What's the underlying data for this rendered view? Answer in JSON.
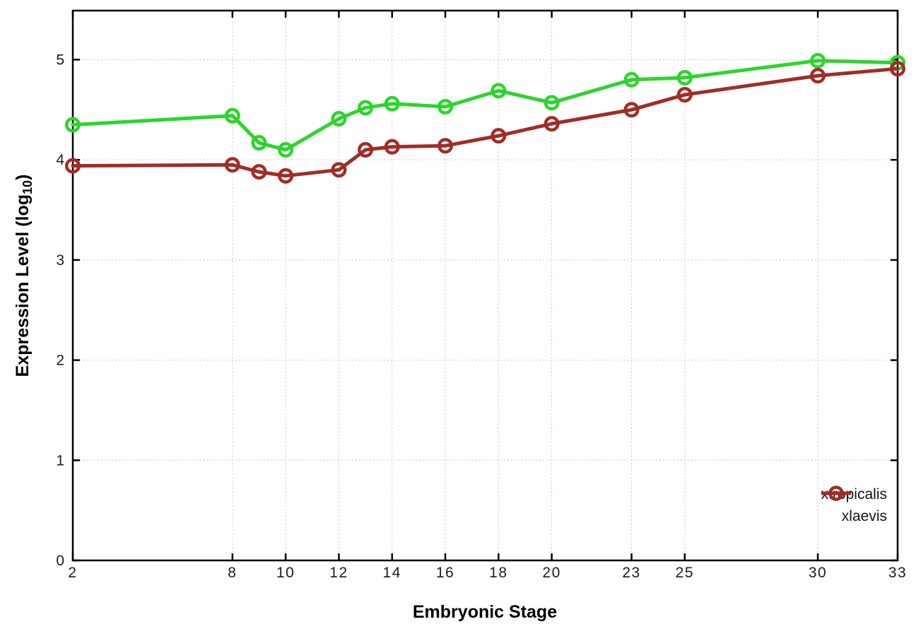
{
  "figure": {
    "xlabel": "Embryonic Stage",
    "ylabel_main": "Expression Level (log",
    "ylabel_sub": "10",
    "ylabel_end": ")"
  },
  "chart_data": {
    "type": "line",
    "x": [
      2,
      8,
      9,
      10,
      12,
      13,
      14,
      16,
      18,
      20,
      23,
      25,
      30,
      33
    ],
    "series": [
      {
        "name": "xtropicalis",
        "color": "#2bd52b",
        "values": [
          4.35,
          4.44,
          4.17,
          4.1,
          4.41,
          4.52,
          4.56,
          4.53,
          4.69,
          4.57,
          4.8,
          4.82,
          4.99,
          4.97
        ]
      },
      {
        "name": "xlaevis",
        "color": "#a22c25",
        "values": [
          3.94,
          3.95,
          3.88,
          3.84,
          3.9,
          4.1,
          4.13,
          4.14,
          4.24,
          4.36,
          4.5,
          4.65,
          4.84,
          4.91
        ]
      }
    ],
    "title": "",
    "xlabel": "Embryonic Stage",
    "ylabel": "Expression Level (log10)",
    "xticks": [
      2,
      8,
      10,
      12,
      14,
      16,
      18,
      20,
      23,
      25,
      30,
      33
    ],
    "yticks": [
      0,
      1,
      2,
      3,
      4,
      5
    ],
    "xlim": [
      2,
      33
    ],
    "ylim": [
      0,
      5.49
    ],
    "grid": true,
    "grid_style": "dotted",
    "legend_position": "bottom-right-inside",
    "marker": "open-circle",
    "axis_color": "#000000",
    "grid_color": "#bbbbbb",
    "tick_label_color": "#1c1c1c"
  }
}
